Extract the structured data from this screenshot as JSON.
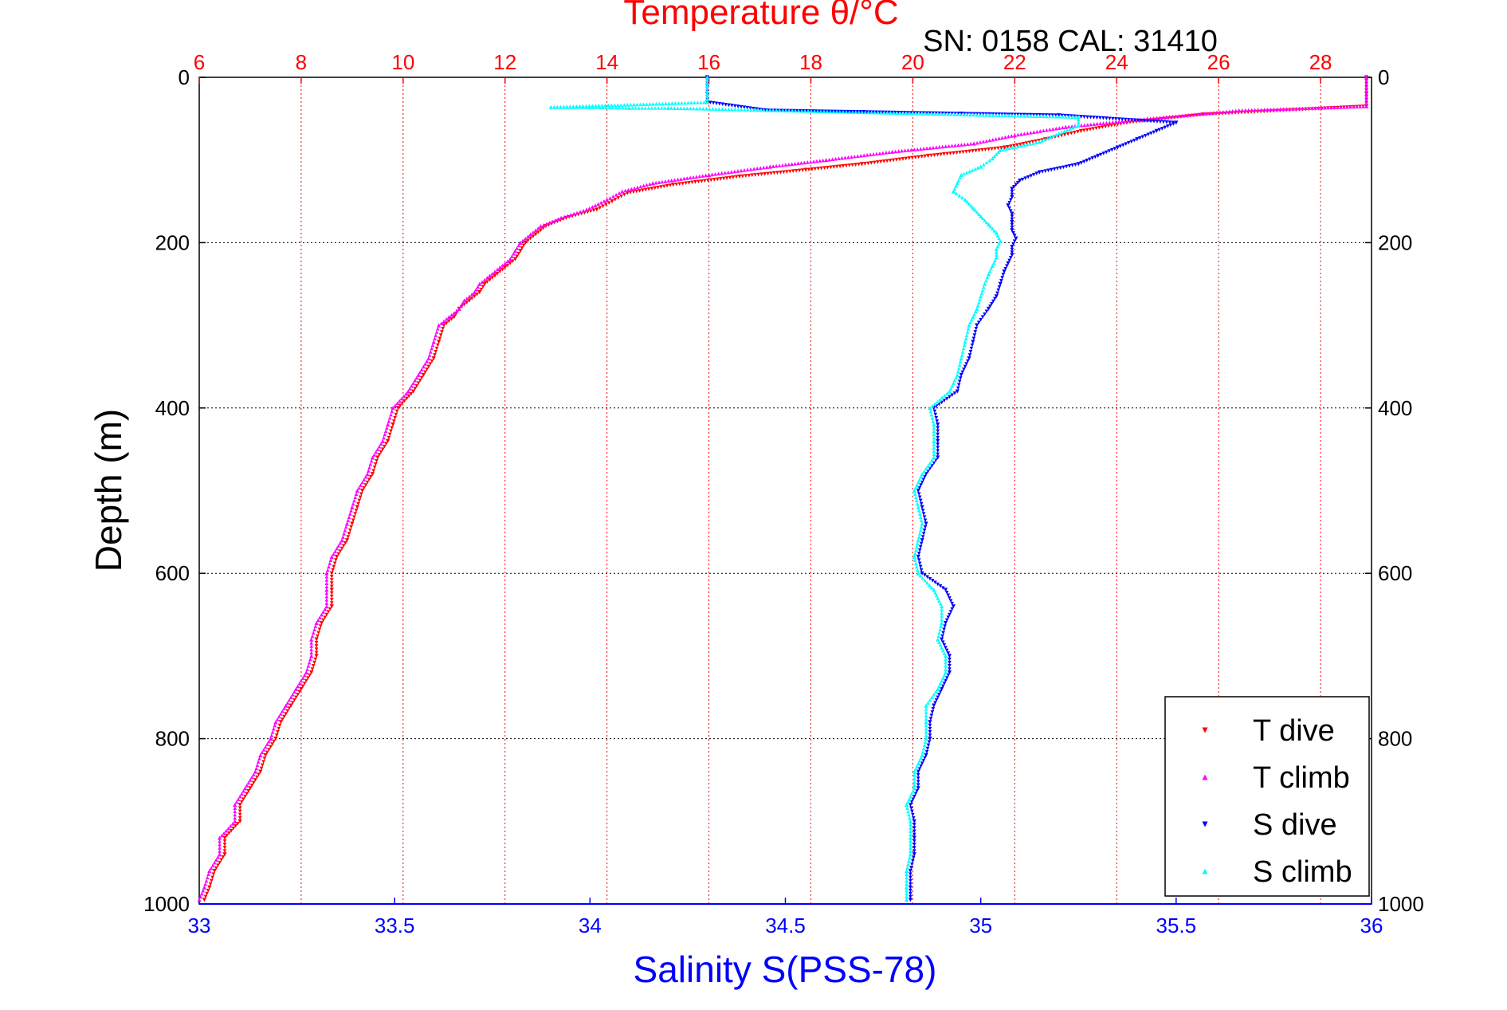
{
  "chart_data": {
    "type": "scatter",
    "title": "Temperature θ/°C",
    "subtitle": "SN: 0158  CAL: 31410",
    "ylabel": "Depth (m)",
    "xlabel": "Salinity S(PSS-78)",
    "ylim": [
      0,
      1000
    ],
    "y_reversed": true,
    "xlim_temperature": [
      6,
      29
    ],
    "xlim_salinity": [
      33,
      36
    ],
    "temperature_axis_position": "top",
    "salinity_axis_position": "bottom",
    "temperature_ticks": [
      "6",
      "8",
      "10",
      "12",
      "14",
      "16",
      "18",
      "20",
      "22",
      "24",
      "26",
      "28"
    ],
    "salinity_ticks": [
      "33",
      "33.5",
      "34",
      "34.5",
      "35",
      "35.5",
      "36"
    ],
    "depth_ticks_left": [
      "0",
      "200",
      "400",
      "600",
      "800",
      "1000"
    ],
    "depth_ticks_right": [
      "0",
      "200",
      "400",
      "600",
      "800",
      "1000"
    ],
    "grid": true,
    "legend_placement": "bottom-right",
    "colors": {
      "temperature_axis": "#ff0000",
      "salinity_axis": "#0000ff",
      "grid": "#000000",
      "t_dive": "#ff0000",
      "t_climb": "#ff00ff",
      "s_dive": "#0000ff",
      "s_climb": "#00ffff"
    },
    "series": [
      {
        "name": "T dive",
        "axis": "temperature",
        "marker": "triangle-down",
        "color": "#ff0000",
        "points": [
          [
            28.9,
            0
          ],
          [
            28.9,
            20
          ],
          [
            28.9,
            35
          ],
          [
            25.7,
            45
          ],
          [
            24.2,
            55
          ],
          [
            23.3,
            65
          ],
          [
            22.6,
            75
          ],
          [
            21.8,
            85
          ],
          [
            20.3,
            95
          ],
          [
            19.0,
            105
          ],
          [
            17.9,
            112
          ],
          [
            16.6,
            120
          ],
          [
            15.3,
            130
          ],
          [
            14.4,
            140
          ],
          [
            14.1,
            150
          ],
          [
            13.8,
            160
          ],
          [
            13.2,
            170
          ],
          [
            12.8,
            180
          ],
          [
            12.6,
            190
          ],
          [
            12.4,
            200
          ],
          [
            12.3,
            210
          ],
          [
            12.2,
            220
          ],
          [
            12.0,
            230
          ],
          [
            11.8,
            240
          ],
          [
            11.6,
            250
          ],
          [
            11.5,
            260
          ],
          [
            11.3,
            270
          ],
          [
            11.1,
            280
          ],
          [
            11.0,
            290
          ],
          [
            10.8,
            300
          ],
          [
            10.7,
            320
          ],
          [
            10.6,
            340
          ],
          [
            10.4,
            360
          ],
          [
            10.2,
            380
          ],
          [
            9.9,
            400
          ],
          [
            9.8,
            420
          ],
          [
            9.7,
            440
          ],
          [
            9.5,
            460
          ],
          [
            9.4,
            480
          ],
          [
            9.2,
            500
          ],
          [
            9.1,
            520
          ],
          [
            9.0,
            540
          ],
          [
            8.9,
            560
          ],
          [
            8.7,
            580
          ],
          [
            8.6,
            600
          ],
          [
            8.6,
            620
          ],
          [
            8.6,
            640
          ],
          [
            8.4,
            660
          ],
          [
            8.3,
            680
          ],
          [
            8.3,
            700
          ],
          [
            8.2,
            720
          ],
          [
            8.0,
            740
          ],
          [
            7.8,
            760
          ],
          [
            7.6,
            780
          ],
          [
            7.5,
            800
          ],
          [
            7.3,
            820
          ],
          [
            7.2,
            840
          ],
          [
            7.0,
            860
          ],
          [
            6.8,
            880
          ],
          [
            6.8,
            900
          ],
          [
            6.5,
            920
          ],
          [
            6.5,
            940
          ],
          [
            6.3,
            960
          ],
          [
            6.2,
            980
          ],
          [
            6.1,
            995
          ]
        ]
      },
      {
        "name": "T climb",
        "axis": "temperature",
        "marker": "triangle-up",
        "color": "#ff00ff",
        "points": [
          [
            28.9,
            0
          ],
          [
            28.9,
            20
          ],
          [
            28.9,
            35
          ],
          [
            26.4,
            40
          ],
          [
            24.6,
            50
          ],
          [
            23.0,
            60
          ],
          [
            22.0,
            70
          ],
          [
            21.2,
            80
          ],
          [
            19.6,
            90
          ],
          [
            18.3,
            100
          ],
          [
            17.2,
            108
          ],
          [
            16.0,
            118
          ],
          [
            14.9,
            128
          ],
          [
            14.3,
            138
          ],
          [
            14.0,
            148
          ],
          [
            13.6,
            160
          ],
          [
            13.1,
            170
          ],
          [
            12.7,
            180
          ],
          [
            12.5,
            190
          ],
          [
            12.3,
            200
          ],
          [
            12.2,
            210
          ],
          [
            12.1,
            220
          ],
          [
            11.9,
            230
          ],
          [
            11.7,
            240
          ],
          [
            11.5,
            250
          ],
          [
            11.4,
            260
          ],
          [
            11.2,
            270
          ],
          [
            11.1,
            280
          ],
          [
            10.9,
            290
          ],
          [
            10.7,
            300
          ],
          [
            10.6,
            320
          ],
          [
            10.5,
            340
          ],
          [
            10.3,
            360
          ],
          [
            10.1,
            380
          ],
          [
            9.8,
            400
          ],
          [
            9.7,
            420
          ],
          [
            9.6,
            440
          ],
          [
            9.4,
            460
          ],
          [
            9.3,
            480
          ],
          [
            9.1,
            500
          ],
          [
            9.0,
            520
          ],
          [
            8.9,
            540
          ],
          [
            8.8,
            560
          ],
          [
            8.6,
            580
          ],
          [
            8.5,
            600
          ],
          [
            8.5,
            620
          ],
          [
            8.5,
            640
          ],
          [
            8.3,
            660
          ],
          [
            8.2,
            680
          ],
          [
            8.2,
            700
          ],
          [
            8.1,
            720
          ],
          [
            7.9,
            740
          ],
          [
            7.7,
            760
          ],
          [
            7.5,
            780
          ],
          [
            7.4,
            800
          ],
          [
            7.2,
            820
          ],
          [
            7.1,
            840
          ],
          [
            6.9,
            860
          ],
          [
            6.7,
            880
          ],
          [
            6.7,
            900
          ],
          [
            6.4,
            920
          ],
          [
            6.4,
            940
          ],
          [
            6.2,
            960
          ],
          [
            6.1,
            980
          ],
          [
            6.0,
            995
          ]
        ]
      },
      {
        "name": "S dive",
        "axis": "salinity",
        "marker": "triangle-down",
        "color": "#0000ff",
        "points": [
          [
            34.3,
            0
          ],
          [
            34.3,
            10
          ],
          [
            34.3,
            20
          ],
          [
            34.3,
            30
          ],
          [
            34.45,
            40
          ],
          [
            34.7,
            42
          ],
          [
            34.95,
            44
          ],
          [
            35.2,
            46
          ],
          [
            35.5,
            55
          ],
          [
            35.45,
            65
          ],
          [
            35.4,
            75
          ],
          [
            35.35,
            85
          ],
          [
            35.3,
            95
          ],
          [
            35.25,
            105
          ],
          [
            35.15,
            115
          ],
          [
            35.1,
            125
          ],
          [
            35.08,
            135
          ],
          [
            35.08,
            145
          ],
          [
            35.07,
            155
          ],
          [
            35.08,
            165
          ],
          [
            35.08,
            175
          ],
          [
            35.08,
            185
          ],
          [
            35.09,
            195
          ],
          [
            35.08,
            205
          ],
          [
            35.08,
            215
          ],
          [
            35.07,
            225
          ],
          [
            35.06,
            235
          ],
          [
            35.05,
            250
          ],
          [
            35.04,
            265
          ],
          [
            35.02,
            280
          ],
          [
            34.99,
            300
          ],
          [
            34.98,
            320
          ],
          [
            34.97,
            340
          ],
          [
            34.95,
            360
          ],
          [
            34.94,
            380
          ],
          [
            34.88,
            400
          ],
          [
            34.89,
            420
          ],
          [
            34.89,
            440
          ],
          [
            34.89,
            460
          ],
          [
            34.86,
            480
          ],
          [
            34.84,
            500
          ],
          [
            34.85,
            520
          ],
          [
            34.86,
            540
          ],
          [
            34.85,
            560
          ],
          [
            34.84,
            580
          ],
          [
            34.85,
            600
          ],
          [
            34.91,
            620
          ],
          [
            34.93,
            640
          ],
          [
            34.91,
            660
          ],
          [
            34.9,
            680
          ],
          [
            34.92,
            700
          ],
          [
            34.92,
            720
          ],
          [
            34.9,
            740
          ],
          [
            34.88,
            760
          ],
          [
            34.87,
            780
          ],
          [
            34.87,
            800
          ],
          [
            34.86,
            820
          ],
          [
            34.84,
            840
          ],
          [
            34.84,
            860
          ],
          [
            34.82,
            880
          ],
          [
            34.83,
            900
          ],
          [
            34.83,
            920
          ],
          [
            34.83,
            940
          ],
          [
            34.82,
            960
          ],
          [
            34.82,
            980
          ],
          [
            34.82,
            995
          ]
        ]
      },
      {
        "name": "S climb",
        "axis": "salinity",
        "marker": "triangle-up",
        "color": "#00ffff",
        "points": [
          [
            34.3,
            0
          ],
          [
            34.3,
            10
          ],
          [
            34.3,
            20
          ],
          [
            34.3,
            30
          ],
          [
            33.9,
            36
          ],
          [
            34.0,
            36
          ],
          [
            34.1,
            37
          ],
          [
            34.2,
            37
          ],
          [
            35.25,
            48
          ],
          [
            35.25,
            58
          ],
          [
            35.2,
            68
          ],
          [
            35.15,
            78
          ],
          [
            35.05,
            88
          ],
          [
            35.03,
            98
          ],
          [
            35.0,
            108
          ],
          [
            34.95,
            118
          ],
          [
            34.94,
            128
          ],
          [
            34.93,
            138
          ],
          [
            34.96,
            148
          ],
          [
            34.98,
            158
          ],
          [
            35.0,
            168
          ],
          [
            35.02,
            178
          ],
          [
            35.04,
            188
          ],
          [
            35.05,
            198
          ],
          [
            35.04,
            208
          ],
          [
            35.04,
            218
          ],
          [
            35.03,
            228
          ],
          [
            35.02,
            238
          ],
          [
            35.01,
            250
          ],
          [
            35.0,
            265
          ],
          [
            34.99,
            280
          ],
          [
            34.97,
            300
          ],
          [
            34.96,
            320
          ],
          [
            34.95,
            340
          ],
          [
            34.94,
            360
          ],
          [
            34.92,
            380
          ],
          [
            34.87,
            400
          ],
          [
            34.88,
            420
          ],
          [
            34.88,
            440
          ],
          [
            34.88,
            460
          ],
          [
            34.85,
            480
          ],
          [
            34.83,
            500
          ],
          [
            34.84,
            520
          ],
          [
            34.85,
            540
          ],
          [
            34.84,
            560
          ],
          [
            34.83,
            580
          ],
          [
            34.84,
            600
          ],
          [
            34.88,
            620
          ],
          [
            34.9,
            640
          ],
          [
            34.9,
            660
          ],
          [
            34.89,
            680
          ],
          [
            34.91,
            700
          ],
          [
            34.91,
            720
          ],
          [
            34.89,
            740
          ],
          [
            34.86,
            760
          ],
          [
            34.86,
            780
          ],
          [
            34.86,
            800
          ],
          [
            34.85,
            820
          ],
          [
            34.83,
            840
          ],
          [
            34.83,
            860
          ],
          [
            34.81,
            880
          ],
          [
            34.82,
            900
          ],
          [
            34.82,
            920
          ],
          [
            34.82,
            940
          ],
          [
            34.81,
            960
          ],
          [
            34.81,
            980
          ],
          [
            34.81,
            995
          ]
        ]
      }
    ]
  }
}
